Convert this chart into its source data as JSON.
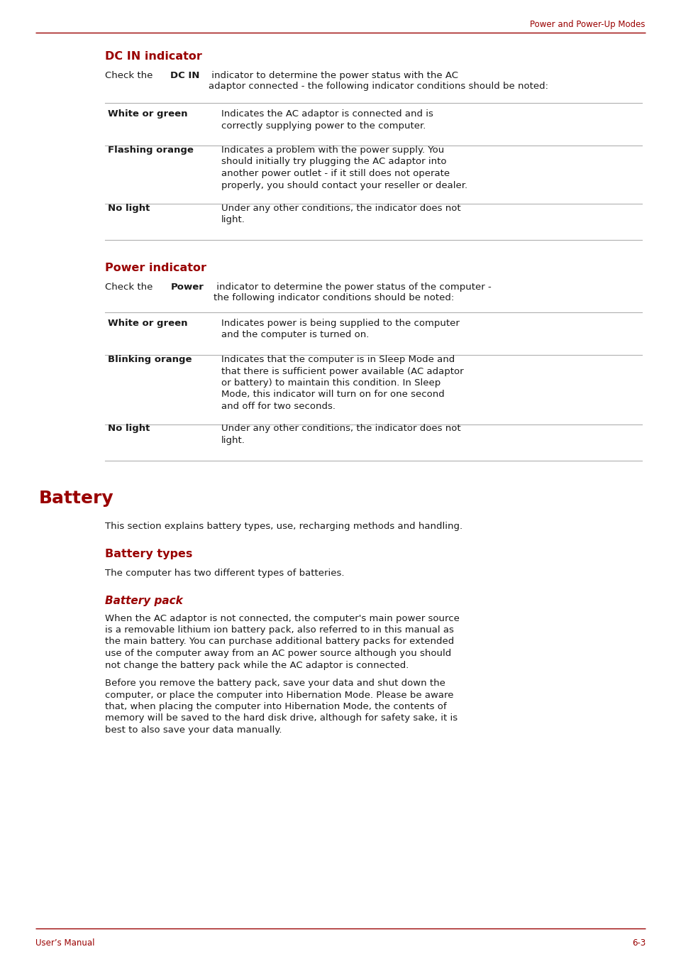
{
  "page_header": "Power and Power-Up Modes",
  "page_footer_left": "User’s Manual",
  "page_footer_right": "6-3",
  "bg_color": "#ffffff",
  "red_color": "#990000",
  "black_color": "#1a1a1a",
  "gray_line_color": "#b0b0b0",
  "dark_line_color": "#990000",
  "section1_title": "DC IN indicator",
  "section1_intro_pre": "Check the ",
  "section1_intro_bold": "DC IN",
  "section1_intro_post": " indicator to determine the power status with the AC\nadaptor connected - the following indicator conditions should be noted:",
  "section1_rows": [
    {
      "key": "White or green",
      "value": "Indicates the AC adaptor is connected and is\ncorrectly supplying power to the computer.",
      "nlines": 2
    },
    {
      "key": "Flashing orange",
      "value": "Indicates a problem with the power supply. You\nshould initially try plugging the AC adaptor into\nanother power outlet - if it still does not operate\nproperly, you should contact your reseller or dealer.",
      "nlines": 4
    },
    {
      "key": "No light",
      "value": "Under any other conditions, the indicator does not\nlight.",
      "nlines": 2
    }
  ],
  "section2_title": "Power indicator",
  "section2_intro_pre": "Check the ",
  "section2_intro_bold": "Power",
  "section2_intro_post": " indicator to determine the power status of the computer -\nthe following indicator conditions should be noted:",
  "section2_rows": [
    {
      "key": "White or green",
      "value": "Indicates power is being supplied to the computer\nand the computer is turned on.",
      "nlines": 2
    },
    {
      "key": "Blinking orange",
      "value": "Indicates that the computer is in Sleep Mode and\nthat there is sufficient power available (AC adaptor\nor battery) to maintain this condition. In Sleep\nMode, this indicator will turn on for one second\nand off for two seconds.",
      "nlines": 5
    },
    {
      "key": "No light",
      "value": "Under any other conditions, the indicator does not\nlight.",
      "nlines": 2
    }
  ],
  "section3_title": "Battery",
  "section3_intro": "This section explains battery types, use, recharging methods and handling.",
  "section4_title": "Battery types",
  "section4_intro": "The computer has two different types of batteries.",
  "section5_title": "Battery pack",
  "section5_para1": "When the AC adaptor is not connected, the computer's main power source\nis a removable lithium ion battery pack, also referred to in this manual as\nthe main battery. You can purchase additional battery packs for extended\nuse of the computer away from an AC power source although you should\nnot change the battery pack while the AC adaptor is connected.",
  "section5_para2": "Before you remove the battery pack, save your data and shut down the\ncomputer, or place the computer into Hibernation Mode. Please be aware\nthat, when placing the computer into Hibernation Mode, the contents of\nmemory will be saved to the hard disk drive, although for safety sake, it is\nbest to also save your data manually."
}
